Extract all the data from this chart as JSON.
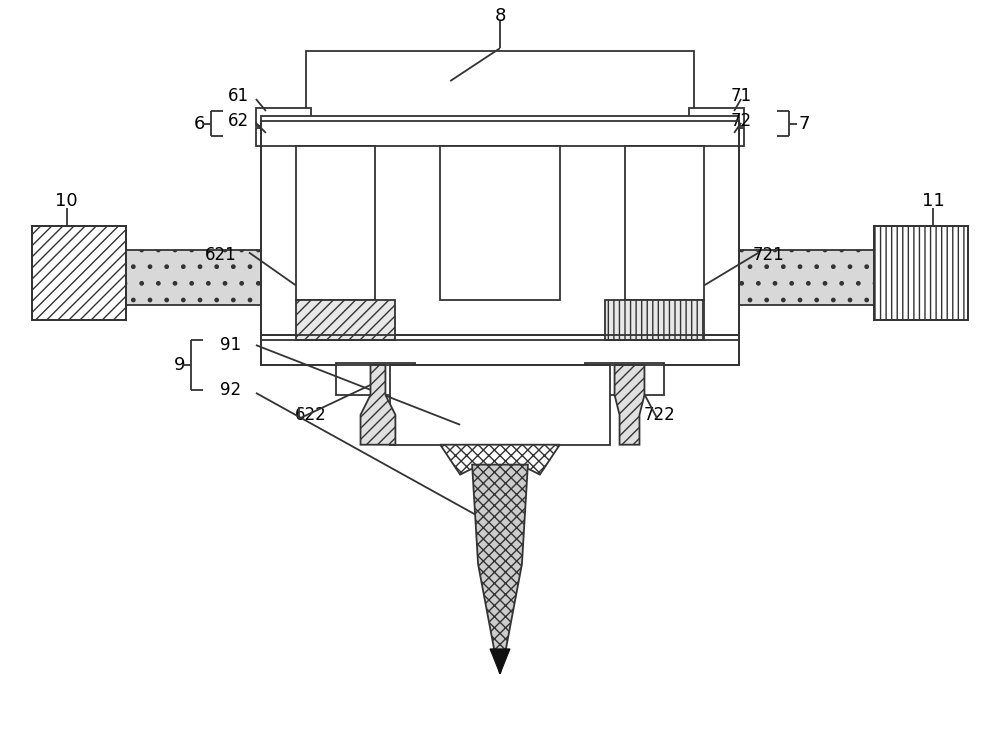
{
  "bg_color": "#ffffff",
  "line_color": "#333333",
  "fig_width": 10.0,
  "fig_height": 7.35
}
